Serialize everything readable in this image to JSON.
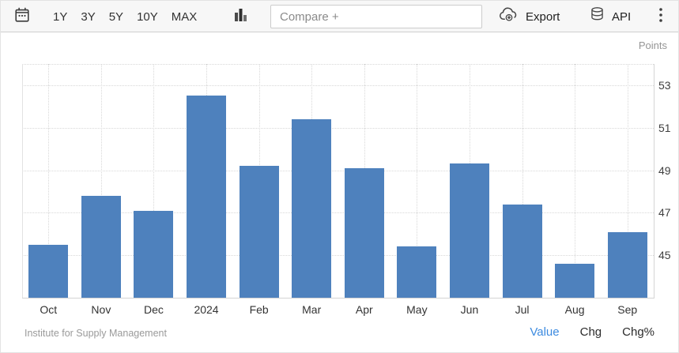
{
  "toolbar": {
    "ranges": [
      "1Y",
      "3Y",
      "5Y",
      "10Y",
      "MAX"
    ],
    "compare_placeholder": "Compare +",
    "export_label": "Export",
    "api_label": "API"
  },
  "chart": {
    "unit_label": "Points"
  },
  "footer": {
    "source": "Institute for Supply Management",
    "links": [
      {
        "label": "Value",
        "active": true
      },
      {
        "label": "Chg",
        "active": false
      },
      {
        "label": "Chg%",
        "active": false
      }
    ]
  },
  "colors": {
    "bar": "#4e81bd",
    "active_link": "#3d8be0",
    "grid": "#d8d8d8",
    "axis": "#d4d4d4"
  },
  "chart_data": {
    "type": "bar",
    "categories": [
      "Oct",
      "Nov",
      "Dec",
      "2024",
      "Feb",
      "Mar",
      "Apr",
      "May",
      "Jun",
      "Jul",
      "Aug",
      "Sep"
    ],
    "values": [
      45.5,
      47.8,
      47.1,
      52.5,
      49.2,
      51.4,
      49.1,
      45.4,
      49.3,
      47.4,
      44.6,
      46.1
    ],
    "title": "",
    "xlabel": "",
    "ylabel": "Points",
    "ylim": [
      43,
      54
    ],
    "yticks": [
      45,
      47,
      49,
      51,
      53
    ],
    "grid": true,
    "legend_position": "none"
  }
}
